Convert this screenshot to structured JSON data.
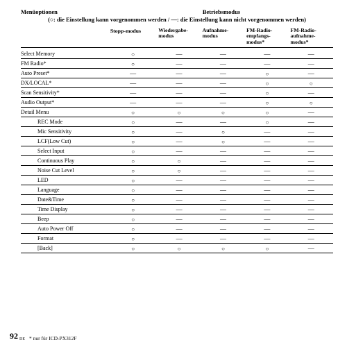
{
  "header": {
    "left": "Menüoptionen",
    "right": "Betriebsmodus",
    "subtitle": "(○: die Einstellung kann vorgenommen werden / —: die Einstellung kann nicht vorgenommen werden)"
  },
  "columns": [
    "Stopp-modus",
    "Wiedergabe-\nmodus",
    "Aufnahme-\nmodus",
    "FM-Radio-\nempfangs-\nmodus*",
    "FM-Radio-\naufnahme-\nmodus*"
  ],
  "rows": [
    {
      "label": "Select Memory",
      "indent": false,
      "cells": [
        "○",
        "—",
        "—",
        "—",
        "—"
      ]
    },
    {
      "label": "FM Radio*",
      "indent": false,
      "cells": [
        "○",
        "—",
        "—",
        "—",
        "—"
      ]
    },
    {
      "label": "Auto Preset*",
      "indent": false,
      "cells": [
        "—",
        "—",
        "—",
        "○",
        "—"
      ]
    },
    {
      "label": "DX/LOCAL*",
      "indent": false,
      "cells": [
        "—",
        "—",
        "—",
        "○",
        "○"
      ]
    },
    {
      "label": "Scan Sensitivity*",
      "indent": false,
      "cells": [
        "—",
        "—",
        "—",
        "○",
        "—"
      ]
    },
    {
      "label": "Audio Output*",
      "indent": false,
      "cells": [
        "—",
        "—",
        "—",
        "○",
        "○"
      ]
    },
    {
      "label": "Detail Menu",
      "indent": false,
      "cells": [
        "○",
        "○",
        "○",
        "○",
        "—"
      ]
    },
    {
      "label": "REC Mode",
      "indent": true,
      "cells": [
        "○",
        "—",
        "—",
        "○",
        "—"
      ]
    },
    {
      "label": "Mic Sensitivity",
      "indent": true,
      "cells": [
        "○",
        "—",
        "○",
        "—",
        "—"
      ]
    },
    {
      "label": "LCF(Low Cut)",
      "indent": true,
      "cells": [
        "○",
        "—",
        "○",
        "—",
        "—"
      ]
    },
    {
      "label": "Select Input",
      "indent": true,
      "cells": [
        "○",
        "—",
        "—",
        "—",
        "—"
      ]
    },
    {
      "label": "Continuous Play",
      "indent": true,
      "cells": [
        "○",
        "○",
        "—",
        "—",
        "—"
      ]
    },
    {
      "label": "Noise Cut Level",
      "indent": true,
      "cells": [
        "○",
        "○",
        "—",
        "—",
        "—"
      ]
    },
    {
      "label": "LED",
      "indent": true,
      "cells": [
        "○",
        "—",
        "—",
        "—",
        "—"
      ]
    },
    {
      "label": "Language",
      "indent": true,
      "cells": [
        "○",
        "—",
        "—",
        "—",
        "—"
      ]
    },
    {
      "label": "Date&Time",
      "indent": true,
      "cells": [
        "○",
        "—",
        "—",
        "—",
        "—"
      ]
    },
    {
      "label": "Time Display",
      "indent": true,
      "cells": [
        "○",
        "—",
        "—",
        "—",
        "—"
      ]
    },
    {
      "label": "Beep",
      "indent": true,
      "cells": [
        "○",
        "—",
        "—",
        "—",
        "—"
      ]
    },
    {
      "label": "Auto Power Off",
      "indent": true,
      "cells": [
        "○",
        "—",
        "—",
        "—",
        "—"
      ]
    },
    {
      "label": "Format",
      "indent": true,
      "cells": [
        "○",
        "—",
        "—",
        "—",
        "—"
      ]
    },
    {
      "label": "[Back]",
      "indent": true,
      "cells": [
        "○",
        "○",
        "○",
        "○",
        "—"
      ]
    }
  ],
  "symbols": {
    "yes": "○",
    "no": "—"
  },
  "footer": {
    "page": "92",
    "sup": "DE",
    "note": "* nur für ICD-PX312F"
  }
}
